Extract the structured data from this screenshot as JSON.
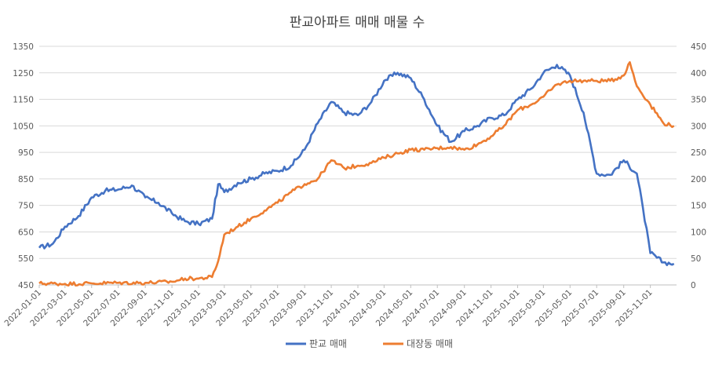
{
  "chart_data": {
    "type": "line",
    "title": "판교아파트 매매 매물 수",
    "xlabel": "",
    "ylabel_left": "",
    "ylabel_right": "",
    "ylim_left": [
      450,
      1350
    ],
    "yticks_left": [
      450,
      550,
      650,
      750,
      850,
      950,
      1050,
      1150,
      1250,
      1350
    ],
    "ylim_right": [
      0,
      450
    ],
    "yticks_right": [
      0,
      50,
      100,
      150,
      200,
      250,
      300,
      350,
      400,
      450
    ],
    "x_tick_labels": [
      "2022-01-01",
      "2022-03-01",
      "2022-05-01",
      "2022-07-01",
      "2022-09-01",
      "2022-11-01",
      "2023-01-01",
      "2023-03-01",
      "2023-05-01",
      "2023-07-01",
      "2023-09-01",
      "2023-11-01",
      "2024-01-01",
      "2024-03-01",
      "2024-05-01",
      "2024-07-01",
      "2024-09-01",
      "2024-11-01",
      "2025-01-01",
      "2025-03-01",
      "2025-05-01",
      "2025-07-01",
      "2025-09-01",
      "2025-11-01"
    ],
    "grid": true,
    "legend_position": "bottom",
    "series": [
      {
        "name": "판교 매매",
        "axis": "left",
        "color": "#4472C4",
        "x": [
          "2022-01-01",
          "2022-02-01",
          "2022-03-01",
          "2022-04-01",
          "2022-05-01",
          "2022-06-01",
          "2022-07-01",
          "2022-08-01",
          "2022-09-01",
          "2022-10-01",
          "2022-11-01",
          "2022-12-01",
          "2023-01-01",
          "2023-02-01",
          "2023-02-15",
          "2023-03-01",
          "2023-04-01",
          "2023-05-01",
          "2023-06-01",
          "2023-07-01",
          "2023-08-01",
          "2023-09-01",
          "2023-10-01",
          "2023-11-01",
          "2023-12-01",
          "2024-01-01",
          "2024-02-01",
          "2024-03-01",
          "2024-04-01",
          "2024-05-01",
          "2024-06-01",
          "2024-07-01",
          "2024-08-01",
          "2024-09-01",
          "2024-10-01",
          "2024-11-01",
          "2024-12-01",
          "2025-01-01",
          "2025-02-01",
          "2025-03-01",
          "2025-04-01",
          "2025-05-01",
          "2025-06-01",
          "2025-07-01",
          "2025-08-01",
          "2025-09-01",
          "2025-10-01",
          "2025-10-15",
          "2025-11-01",
          "2025-12-01",
          "2025-12-25"
        ],
        "values": [
          590,
          605,
          670,
          710,
          780,
          805,
          810,
          825,
          780,
          760,
          720,
          690,
          680,
          700,
          830,
          800,
          835,
          850,
          870,
          880,
          900,
          960,
          1060,
          1140,
          1100,
          1090,
          1140,
          1220,
          1250,
          1230,
          1150,
          1050,
          990,
          1030,
          1050,
          1080,
          1090,
          1150,
          1190,
          1250,
          1280,
          1240,
          1100,
          870,
          865,
          920,
          870,
          740,
          570,
          535,
          530
        ]
      },
      {
        "name": "대장동 매매",
        "axis": "right",
        "color": "#ED7D31",
        "x": [
          "2022-01-01",
          "2022-03-01",
          "2022-05-01",
          "2022-07-01",
          "2022-09-01",
          "2022-11-01",
          "2022-12-01",
          "2023-01-01",
          "2023-02-01",
          "2023-02-15",
          "2023-03-01",
          "2023-04-01",
          "2023-05-01",
          "2023-06-01",
          "2023-07-01",
          "2023-08-01",
          "2023-09-01",
          "2023-10-01",
          "2023-11-01",
          "2023-12-01",
          "2024-01-01",
          "2024-02-01",
          "2024-03-01",
          "2024-04-01",
          "2024-05-01",
          "2024-06-01",
          "2024-07-01",
          "2024-08-01",
          "2024-09-01",
          "2024-10-01",
          "2024-11-01",
          "2024-12-01",
          "2025-01-01",
          "2025-02-01",
          "2025-03-01",
          "2025-04-01",
          "2025-05-01",
          "2025-06-01",
          "2025-07-01",
          "2025-08-01",
          "2025-09-01",
          "2025-09-15",
          "2025-10-01",
          "2025-11-01",
          "2025-12-01",
          "2025-12-25"
        ],
        "values": [
          3,
          2,
          3,
          4,
          4,
          6,
          12,
          12,
          15,
          45,
          95,
          110,
          125,
          140,
          155,
          175,
          190,
          200,
          235,
          220,
          225,
          230,
          240,
          248,
          255,
          255,
          258,
          260,
          255,
          265,
          280,
          300,
          330,
          340,
          355,
          378,
          385,
          385,
          385,
          385,
          395,
          420,
          375,
          340,
          305,
          300
        ]
      }
    ]
  },
  "legend": {
    "items": [
      "판교 매매",
      "대장동 매매"
    ]
  }
}
